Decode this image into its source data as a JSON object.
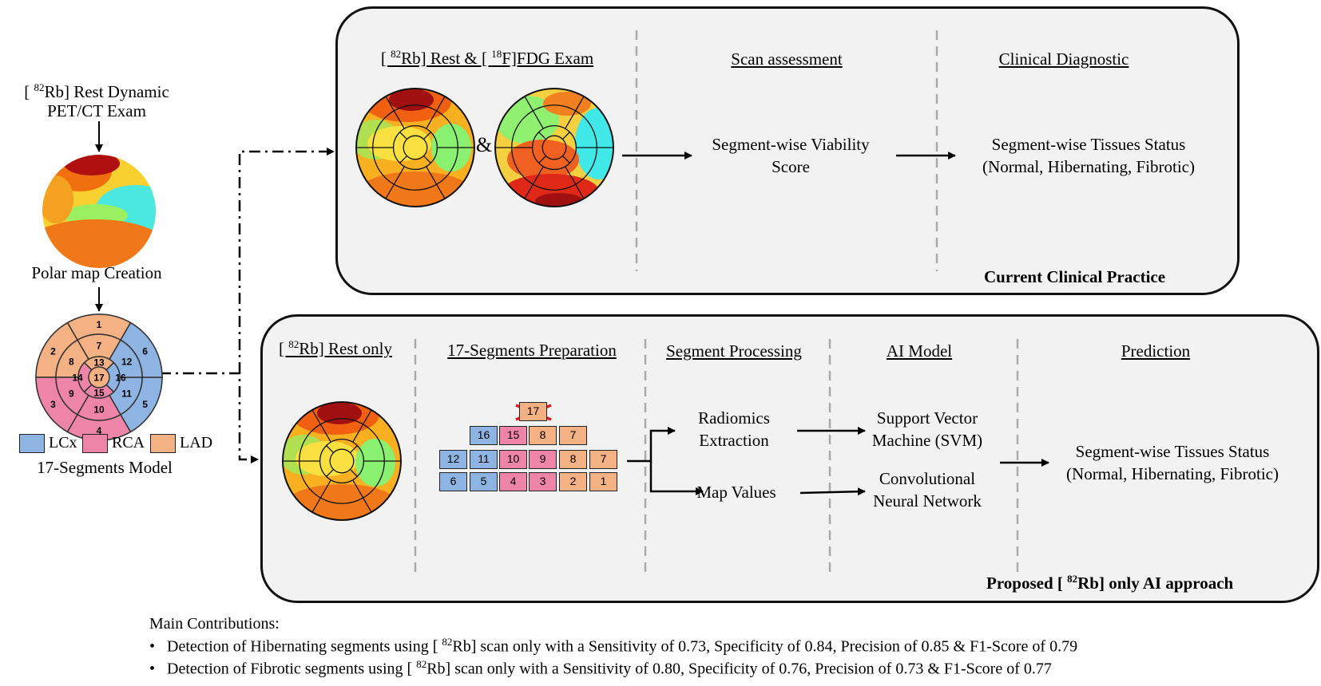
{
  "left": {
    "exam_line1": "[ 82Rb] Rest Dynamic",
    "exam_line1_pre": "[ ",
    "exam_line1_sup": "82",
    "exam_line1_post": "Rb] Rest Dynamic",
    "exam_line2": "PET/CT Exam",
    "polar_caption": "Polar map Creation",
    "model_caption": "17-Segments Model",
    "legend": [
      {
        "label": "LCx",
        "color": "#8eb4e3"
      },
      {
        "label": "RCA",
        "color": "#ee85a8"
      },
      {
        "label": "LAD",
        "color": "#f4b183"
      }
    ]
  },
  "segments_model": {
    "labels": [
      "1",
      "2",
      "3",
      "4",
      "5",
      "6",
      "7",
      "8",
      "9",
      "10",
      "11",
      "12",
      "13",
      "14",
      "15",
      "16",
      "17"
    ],
    "colors": {
      "LCx": "#8eb4e3",
      "RCA": "#ee85a8",
      "LAD": "#f4b183"
    }
  },
  "current": {
    "header1_pre": "[ ",
    "header1_sup1": "82",
    "header1_mid": "Rb] Rest & [ ",
    "header1_sup2": "18",
    "header1_post": "F]FDG Exam",
    "amp": "&",
    "header2": "Scan assessment",
    "header3": "Clinical Diagnostic",
    "score_line1": "Segment-wise Viability",
    "score_line2": "Score",
    "status_line1": "Segment-wise Tissues Status",
    "status_line2": "(Normal, Hibernating, Fibrotic)",
    "footer": "Current Clinical Practice"
  },
  "proposed": {
    "header1_pre": "[ ",
    "header1_sup": "82",
    "header1_post": "Rb] Rest only",
    "header2": "17-Segments Preparation",
    "header3": "Segment Processing",
    "header4": "AI Model",
    "header5": "Prediction",
    "crossed_cell": "17",
    "grid_rows": [
      [
        "16",
        "15",
        "8",
        "7"
      ],
      [
        "12",
        "11",
        "10",
        "9",
        "8",
        "7"
      ],
      [
        "6",
        "5",
        "4",
        "3",
        "2",
        "1"
      ]
    ],
    "radiomics_line1": "Radiomics",
    "radiomics_line2": "Extraction",
    "map_values": "Map Values",
    "svm_line1": "Support Vector",
    "svm_line2": "Machine (SVM)",
    "cnn_line1": "Convolutional",
    "cnn_line2": "Neural Network",
    "status_line1": "Segment-wise Tissues Status",
    "status_line2": "(Normal, Hibernating, Fibrotic)",
    "footer_pre": "Proposed [ ",
    "footer_sup": "82",
    "footer_post": "Rb] only AI approach"
  },
  "contributions": {
    "title": "Main Contributions:",
    "items": [
      {
        "pre": "Detection of Hibernating segments using [ ",
        "sup": "82",
        "post": "Rb] scan only with a Sensitivity of 0.73, Specificity of 0.84, Precision of 0.85 & F1-Score of 0.79"
      },
      {
        "pre": "Detection of Fibrotic segments using [ ",
        "sup": "82",
        "post": "Rb] scan only with a Sensitivity of 0.80, Specificity of 0.76, Precision of 0.73 & F1-Score of 0.77"
      }
    ]
  }
}
